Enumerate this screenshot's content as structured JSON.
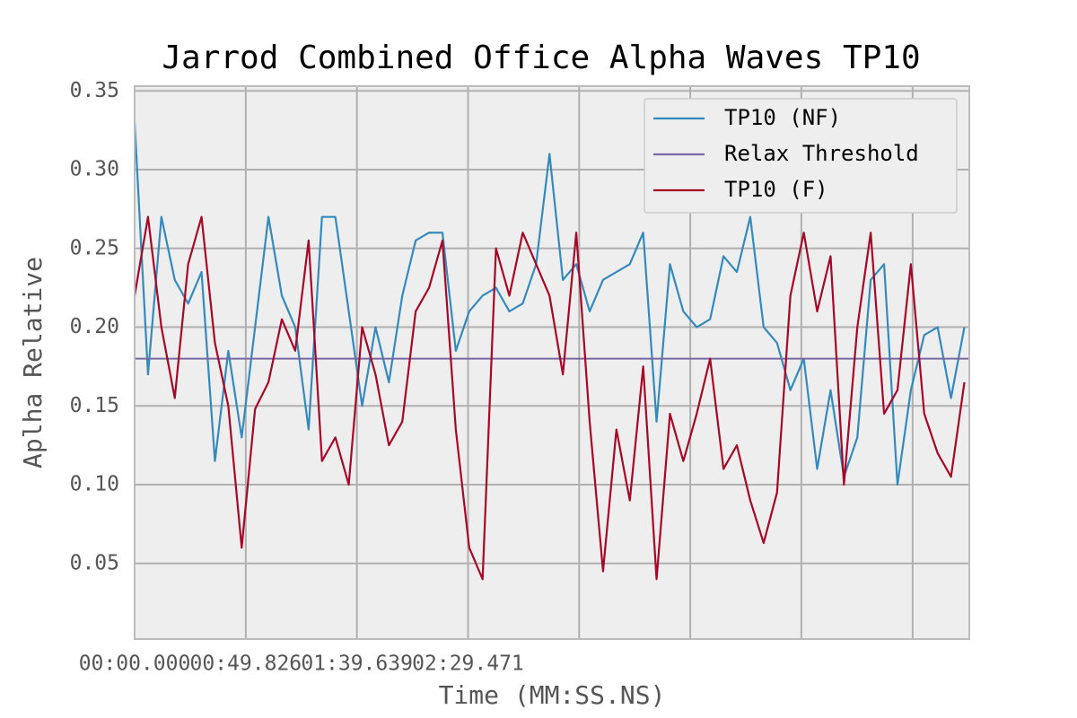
{
  "chart_data": {
    "type": "line",
    "title": "Jarrod Combined Office Alpha Waves TP10",
    "xlabel": "Time (MM:SS.NS)",
    "ylabel": "Aplha Relative",
    "x": [
      0,
      6,
      12,
      18,
      24,
      30,
      36,
      42,
      48,
      54,
      60,
      66,
      72,
      78,
      84,
      90,
      96,
      102,
      108,
      114,
      120,
      126,
      132,
      138,
      144,
      150,
      156,
      162,
      168,
      174,
      180,
      186,
      192,
      198,
      204,
      210,
      216,
      222,
      228,
      234,
      240,
      246,
      252,
      258,
      264,
      270,
      276,
      282,
      288,
      294,
      300,
      306,
      312,
      318,
      324,
      330,
      336,
      342,
      348,
      354,
      360,
      366,
      372
    ],
    "series": [
      {
        "name": "TP10 (NF)",
        "color": "#348abd",
        "values": [
          0.33,
          0.17,
          0.27,
          0.23,
          0.215,
          0.235,
          0.115,
          0.185,
          0.13,
          0.2,
          0.27,
          0.22,
          0.2,
          0.135,
          0.27,
          0.27,
          0.21,
          0.15,
          0.2,
          0.165,
          0.22,
          0.255,
          0.26,
          0.26,
          0.185,
          0.21,
          0.22,
          0.225,
          0.21,
          0.215,
          0.24,
          0.31,
          0.23,
          0.24,
          0.21,
          0.23,
          0.235,
          0.24,
          0.26,
          0.14,
          0.24,
          0.21,
          0.2,
          0.205,
          0.245,
          0.235,
          0.27,
          0.2,
          0.19,
          0.16,
          0.18,
          0.11,
          0.16,
          0.105,
          0.13,
          0.23,
          0.24,
          0.1,
          0.16,
          0.195,
          0.2,
          0.155,
          0.2
        ]
      },
      {
        "name": "Relax Threshold",
        "color": "#7a68a6",
        "value": 0.18
      },
      {
        "name": "TP10 (F)",
        "color": "#a60628",
        "values": [
          0.22,
          0.27,
          0.2,
          0.155,
          0.24,
          0.27,
          0.19,
          0.15,
          0.06,
          0.148,
          0.165,
          0.205,
          0.185,
          0.255,
          0.115,
          0.13,
          0.1,
          0.2,
          0.17,
          0.125,
          0.14,
          0.21,
          0.225,
          0.255,
          0.135,
          0.06,
          0.04,
          0.25,
          0.22,
          0.26,
          0.24,
          0.22,
          0.17,
          0.26,
          0.14,
          0.045,
          0.135,
          0.09,
          0.175,
          0.04,
          0.145,
          0.115,
          0.145,
          0.18,
          0.11,
          0.125,
          0.09,
          0.063,
          0.095,
          0.22,
          0.26,
          0.21,
          0.245,
          0.1,
          0.2,
          0.26,
          0.145,
          0.16,
          0.24,
          0.145,
          0.12,
          0.105,
          0.165
        ]
      }
    ],
    "xlim": [
      0,
      374.2
    ],
    "xticks": [
      {
        "value": 0,
        "label": "00:00.000"
      },
      {
        "value": 49.826,
        "label": "00:49.826"
      },
      {
        "value": 99.639,
        "label": "01:39.639"
      },
      {
        "value": 149.471,
        "label": "02:29.471"
      },
      {
        "value": 199.3,
        "label": null
      },
      {
        "value": 249.1,
        "label": null
      },
      {
        "value": 298.9,
        "label": null
      },
      {
        "value": 348.8,
        "label": null
      }
    ],
    "ylim": [
      0.002,
      0.353
    ],
    "yticks": [
      {
        "value": 0.05,
        "label": "0.05"
      },
      {
        "value": 0.1,
        "label": "0.10"
      },
      {
        "value": 0.15,
        "label": "0.15"
      },
      {
        "value": 0.2,
        "label": "0.20"
      },
      {
        "value": 0.25,
        "label": "0.25"
      },
      {
        "value": 0.3,
        "label": "0.30"
      },
      {
        "value": 0.35,
        "label": "0.35"
      }
    ],
    "grid": true,
    "legend": "upper right"
  }
}
